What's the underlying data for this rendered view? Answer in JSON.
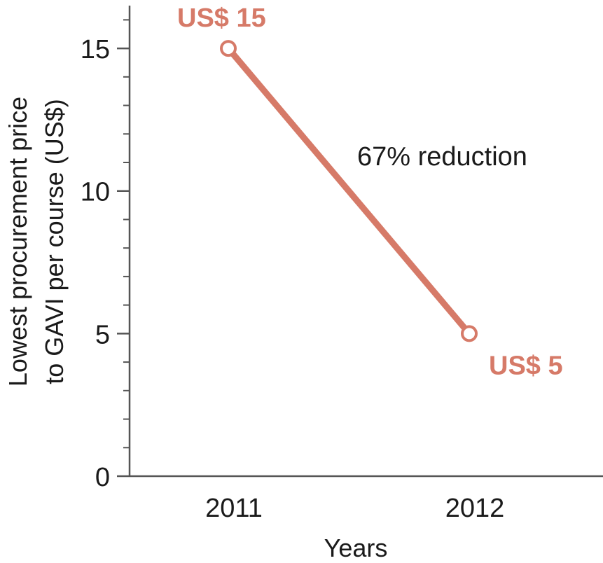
{
  "chart_data": {
    "type": "line",
    "title": "",
    "xlabel": "Years",
    "ylabel_lines": [
      "Lowest procurement price",
      "to GAVI per course (US$)"
    ],
    "x_categories": [
      "2011",
      "2012"
    ],
    "y_ticks": [
      "0",
      "5",
      "10",
      "15"
    ],
    "ylim": [
      0,
      16.5
    ],
    "y_minor_step": 1,
    "grid": false,
    "series": [
      {
        "values": [
          15,
          5
        ],
        "point_labels": [
          "US$ 15",
          "US$ 5"
        ],
        "color": "#d67a68"
      }
    ],
    "annotation": "67% reduction"
  }
}
